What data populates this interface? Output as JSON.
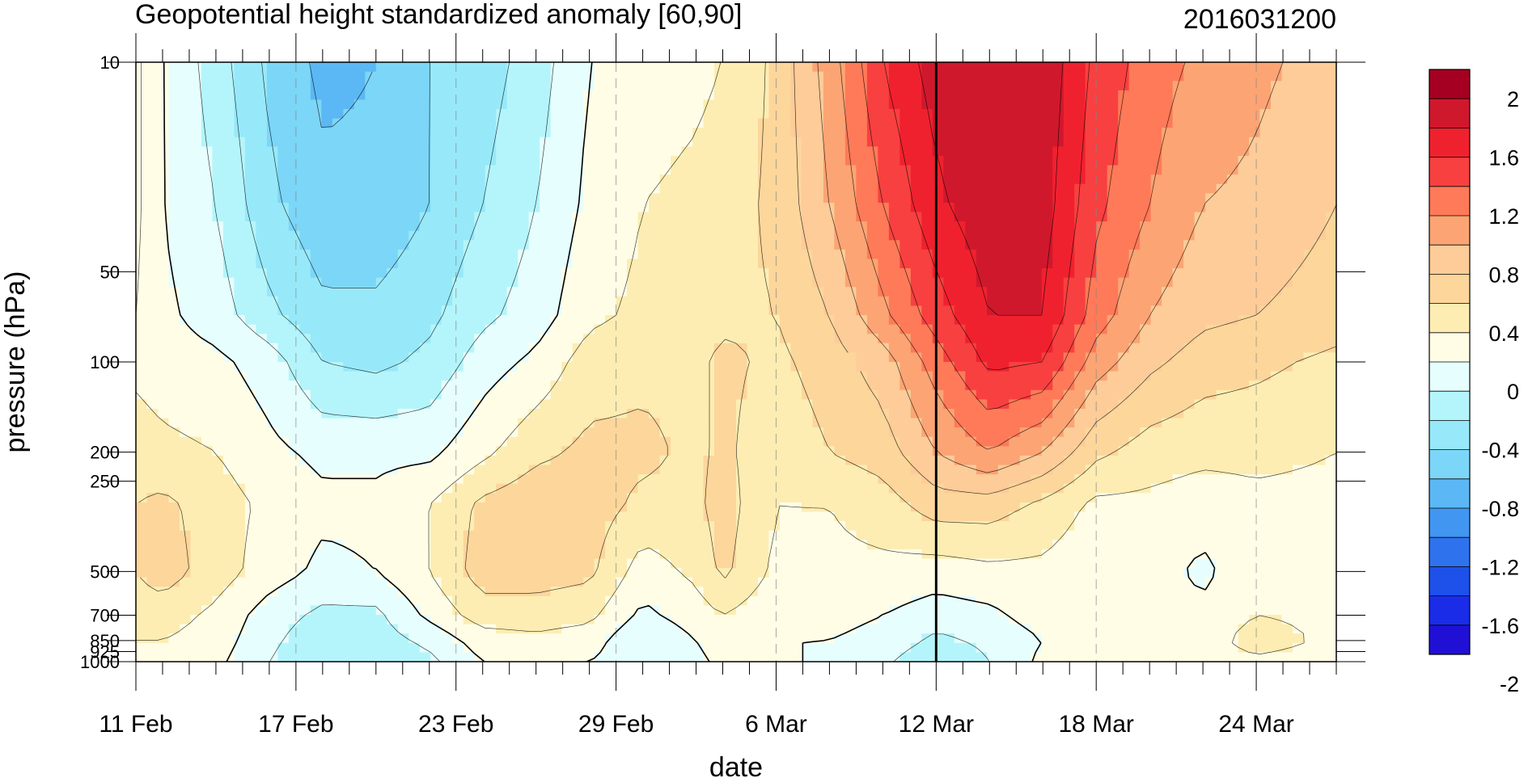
{
  "chart_data": {
    "type": "heatmap",
    "title": "Geopotential height standardized anomaly [60,90]",
    "timestamp": "2016031200",
    "xlabel": "date",
    "ylabel": "pressure (hPa)",
    "x_tick_labels": [
      "11 Feb",
      "17 Feb",
      "23 Feb",
      "29 Feb",
      "6 Mar",
      "12 Mar",
      "18 Mar",
      "24 Mar"
    ],
    "x_range_days_from_11feb": [
      0,
      45
    ],
    "y_ticks": [
      10,
      50,
      100,
      200,
      250,
      500,
      700,
      850,
      925,
      1000
    ],
    "y_scale": "log",
    "y_range": [
      10,
      1000
    ],
    "y_reversed": true,
    "current_date": "12 Mar",
    "legend_position": "right",
    "colorbar_labels": [
      "2",
      "1.6",
      "1.2",
      "0.8",
      "0.4",
      "0",
      "-0.4",
      "-0.8",
      "-1.2",
      "-1.6",
      "-2"
    ],
    "contour_interval": 0.2,
    "colorbar_colors": [
      "#a50021",
      "#d0182d",
      "#f0212e",
      "#f84040",
      "#ff7a58",
      "#fca474",
      "#fdcc98",
      "#fdd69b",
      "#fdedb2",
      "#fffde6",
      "#e6fefe",
      "#b4f5fb",
      "#97e9f9",
      "#7cd6f7",
      "#5bb8f5",
      "#4196f1",
      "#2e72ed",
      "#1e50ea",
      "#1a2ce8",
      "#2010d6"
    ],
    "levels": [
      -2.0,
      -1.8,
      -1.6,
      -1.4,
      -1.2,
      -1.0,
      -0.8,
      -0.6,
      -0.4,
      -0.2,
      0.0,
      0.2,
      0.4,
      0.6,
      0.8,
      1.0,
      1.2,
      1.4,
      1.6,
      1.8,
      2.0
    ],
    "field_times": [
      0,
      1,
      3,
      5,
      7,
      9,
      11,
      13,
      15,
      17,
      19,
      21,
      22,
      24,
      26,
      28,
      30,
      32,
      34,
      36,
      38,
      40,
      42,
      45
    ],
    "field_pressures": [
      10,
      30,
      70,
      100,
      200,
      300,
      500,
      700,
      850,
      1000
    ],
    "field_values": [
      [
        0.25,
        0.25,
        0.2,
        0.15,
        0.3,
        0.4,
        0.4,
        0.3,
        0.2,
        0.1
      ],
      [
        0.0,
        0.0,
        0.05,
        0.1,
        0.25,
        0.45,
        0.5,
        0.3,
        0.2,
        0.1
      ],
      [
        -0.3,
        -0.2,
        -0.1,
        0.05,
        0.2,
        0.3,
        0.3,
        0.15,
        0.1,
        0.05
      ],
      [
        -0.65,
        -0.55,
        -0.35,
        -0.1,
        0.05,
        0.15,
        0.1,
        -0.1,
        -0.15,
        -0.2
      ],
      [
        -0.85,
        -0.75,
        -0.55,
        -0.4,
        -0.05,
        0.05,
        -0.05,
        -0.25,
        -0.35,
        -0.4
      ],
      [
        -0.8,
        -0.75,
        -0.55,
        -0.45,
        -0.05,
        0.05,
        0.0,
        -0.25,
        -0.3,
        -0.35
      ],
      [
        -0.6,
        -0.6,
        -0.45,
        -0.35,
        -0.05,
        0.2,
        0.2,
        0.05,
        -0.15,
        -0.25
      ],
      [
        -0.5,
        -0.4,
        -0.25,
        -0.1,
        0.15,
        0.45,
        0.5,
        0.3,
        0.1,
        0.0
      ],
      [
        -0.3,
        -0.2,
        -0.1,
        0.05,
        0.35,
        0.55,
        0.5,
        0.3,
        0.15,
        0.05
      ],
      [
        0.0,
        0.05,
        0.15,
        0.3,
        0.45,
        0.5,
        0.45,
        0.25,
        0.1,
        0.0
      ],
      [
        0.1,
        0.2,
        0.25,
        0.35,
        0.45,
        0.35,
        0.1,
        -0.05,
        -0.2,
        -0.15
      ],
      [
        0.15,
        0.25,
        0.3,
        0.35,
        0.35,
        0.35,
        0.25,
        0.1,
        0.0,
        -0.05
      ],
      [
        0.2,
        0.3,
        0.35,
        0.45,
        0.45,
        0.5,
        0.45,
        0.2,
        0.1,
        0.05
      ],
      [
        0.45,
        0.45,
        0.4,
        0.35,
        0.25,
        0.2,
        0.15,
        0.05,
        0.0,
        0.05
      ],
      [
        0.9,
        0.8,
        0.6,
        0.5,
        0.4,
        0.2,
        0.15,
        0.05,
        0.0,
        -0.05
      ],
      [
        1.4,
        1.2,
        0.95,
        0.7,
        0.5,
        0.3,
        0.15,
        0.0,
        -0.05,
        -0.15
      ],
      [
        1.7,
        1.55,
        1.3,
        1.1,
        0.8,
        0.5,
        0.1,
        -0.1,
        -0.25,
        -0.4
      ],
      [
        1.8,
        1.75,
        1.6,
        1.45,
        1.0,
        0.5,
        0.15,
        -0.05,
        -0.15,
        -0.2
      ],
      [
        1.75,
        1.7,
        1.6,
        1.4,
        0.8,
        0.35,
        0.15,
        0.1,
        0.0,
        0.05
      ],
      [
        1.35,
        1.25,
        1.1,
        0.9,
        0.45,
        0.15,
        0.05,
        0.05,
        0.05,
        0.05
      ],
      [
        1.1,
        1.0,
        0.8,
        0.65,
        0.3,
        0.15,
        0.1,
        0.1,
        0.1,
        0.1
      ],
      [
        0.95,
        0.8,
        0.65,
        0.5,
        0.25,
        0.1,
        -0.05,
        0.05,
        0.1,
        0.1
      ],
      [
        0.85,
        0.75,
        0.6,
        0.45,
        0.25,
        0.15,
        0.15,
        0.2,
        0.3,
        0.15
      ],
      [
        0.7,
        0.6,
        0.5,
        0.35,
        0.2,
        0.15,
        0.15,
        0.15,
        0.15,
        0.1
      ]
    ]
  }
}
